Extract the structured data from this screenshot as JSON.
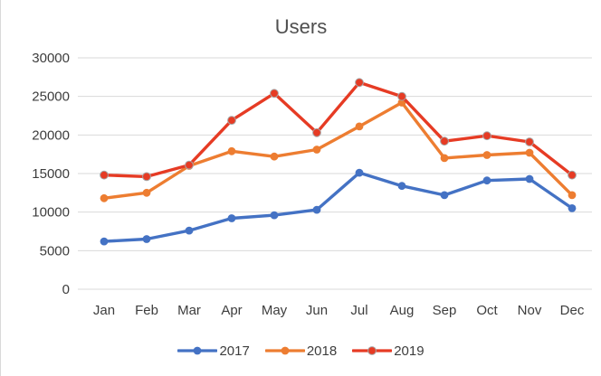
{
  "chart_data": {
    "type": "line",
    "title": "Users",
    "categories": [
      "Jan",
      "Feb",
      "Mar",
      "Apr",
      "May",
      "Jun",
      "Jul",
      "Aug",
      "Sep",
      "Oct",
      "Nov",
      "Dec"
    ],
    "series": [
      {
        "name": "2017",
        "color": "#4472c4",
        "values": [
          6200,
          6500,
          7600,
          9200,
          9600,
          10300,
          15100,
          13400,
          12200,
          14100,
          14300,
          10500
        ]
      },
      {
        "name": "2018",
        "color": "#ed7d31",
        "values": [
          11800,
          12500,
          16000,
          17900,
          17200,
          18100,
          21100,
          24200,
          17000,
          17400,
          17700,
          12200
        ]
      },
      {
        "name": "2019",
        "color": "#e63b24",
        "marker_border": "#a6a6a6",
        "values": [
          14800,
          14600,
          16100,
          21900,
          25400,
          20300,
          26800,
          25000,
          19200,
          19900,
          19100,
          14800
        ]
      }
    ],
    "ylim": [
      0,
      30000
    ],
    "yticks": [
      0,
      5000,
      10000,
      15000,
      20000,
      25000,
      30000
    ],
    "grid": true,
    "legend_position": "bottom",
    "gridline_color": "#d9d9d9",
    "axis_label_color": "#3d3d3d",
    "title_color": "#4f4f4f"
  }
}
